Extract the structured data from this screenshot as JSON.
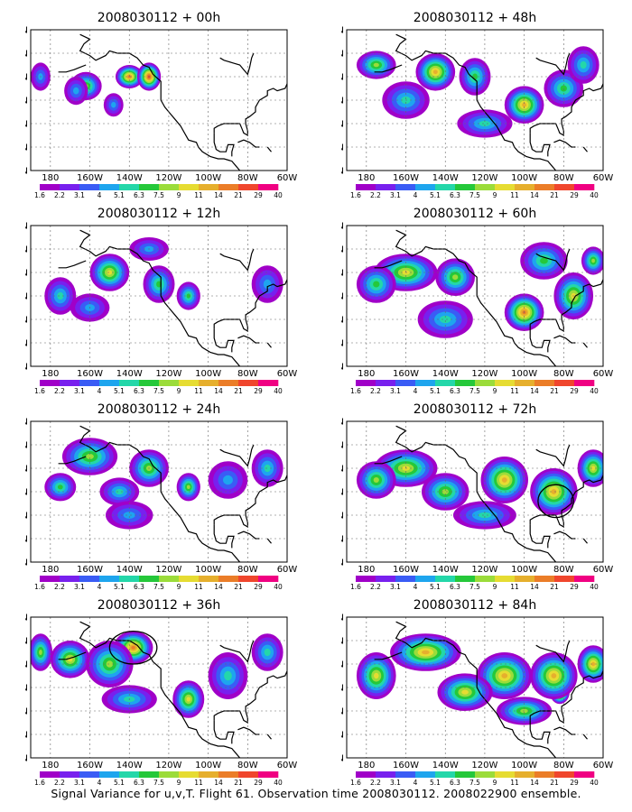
{
  "caption": "Signal Variance for u,v,T. Flight 61. Observation time 2008030112. 2008022900 ensemble.",
  "colors": {
    "background": "#ffffff",
    "coast": "#000000",
    "grid": "#666666",
    "palette": [
      "#a000c8",
      "#7820ee",
      "#3a5cf5",
      "#1ea5ee",
      "#24d7a9",
      "#25c83a",
      "#9bdc3a",
      "#e6dc32",
      "#e6af2d",
      "#eb7d28",
      "#f0462d",
      "#f00082"
    ]
  },
  "chart_data": [
    {
      "type": "heatmap",
      "title": "2008030112 + 00h",
      "x_ticks": [
        "180",
        "160W",
        "140W",
        "120W",
        "100W",
        "80W",
        "60W"
      ],
      "y_ticks": [
        "10N",
        "20N",
        "30N",
        "40N",
        "50N",
        "60N",
        "70N"
      ],
      "xlim": [
        -190,
        -60
      ],
      "ylim": [
        10,
        70
      ],
      "grid": true,
      "colorbar_levels": [
        "1.6",
        "2.2",
        "3.1",
        "4",
        "5.1",
        "6.3",
        "7.5",
        "9",
        "11",
        "14",
        "21",
        "29",
        "40"
      ],
      "field_blobs": [
        [
          -185,
          50,
          5,
          6,
          3
        ],
        [
          -162,
          46,
          8,
          6,
          6
        ],
        [
          -140,
          50,
          7,
          5,
          9
        ],
        [
          -130,
          50,
          6,
          6,
          10
        ],
        [
          -148,
          38,
          5,
          5,
          3
        ],
        [
          -167,
          44,
          6,
          6,
          3
        ]
      ],
      "highlights": []
    },
    {
      "type": "heatmap",
      "title": "2008030112 + 12h",
      "x_ticks": [
        "180",
        "160W",
        "140W",
        "120W",
        "100W",
        "80W",
        "60W"
      ],
      "y_ticks": [
        "10N",
        "20N",
        "30N",
        "40N",
        "50N",
        "60N",
        "70N"
      ],
      "xlim": [
        -190,
        -60
      ],
      "ylim": [
        10,
        70
      ],
      "grid": true,
      "colorbar_levels": [
        "1.6",
        "2.2",
        "3.1",
        "4",
        "5.1",
        "6.3",
        "7.5",
        "9",
        "11",
        "14",
        "21",
        "29",
        "40"
      ],
      "field_blobs": [
        [
          -150,
          50,
          10,
          8,
          7
        ],
        [
          -175,
          40,
          8,
          8,
          4
        ],
        [
          -125,
          45,
          8,
          8,
          5
        ],
        [
          -110,
          40,
          6,
          6,
          5
        ],
        [
          -70,
          45,
          8,
          8,
          3
        ],
        [
          -160,
          35,
          10,
          6,
          3
        ],
        [
          -130,
          60,
          10,
          5,
          3
        ]
      ],
      "highlights": []
    },
    {
      "type": "heatmap",
      "title": "2008030112 + 24h",
      "x_ticks": [
        "180",
        "160W",
        "140W",
        "120W",
        "100W",
        "80W",
        "60W"
      ],
      "y_ticks": [
        "10N",
        "20N",
        "30N",
        "40N",
        "50N",
        "60N",
        "70N"
      ],
      "xlim": [
        -190,
        -60
      ],
      "ylim": [
        10,
        70
      ],
      "grid": true,
      "colorbar_levels": [
        "1.6",
        "2.2",
        "3.1",
        "4",
        "5.1",
        "6.3",
        "7.5",
        "9",
        "11",
        "14",
        "21",
        "29",
        "40"
      ],
      "field_blobs": [
        [
          -160,
          55,
          14,
          8,
          6
        ],
        [
          -130,
          50,
          10,
          8,
          6
        ],
        [
          -110,
          42,
          6,
          6,
          6
        ],
        [
          -175,
          42,
          8,
          6,
          5
        ],
        [
          -145,
          40,
          10,
          6,
          4
        ],
        [
          -90,
          45,
          10,
          8,
          3
        ],
        [
          -70,
          50,
          8,
          8,
          4
        ],
        [
          -140,
          30,
          12,
          6,
          3
        ]
      ],
      "highlights": []
    },
    {
      "type": "heatmap",
      "title": "2008030112 + 36h",
      "x_ticks": [
        "180",
        "160W",
        "140W",
        "120W",
        "100W",
        "80W",
        "60W"
      ],
      "y_ticks": [
        "10N",
        "20N",
        "30N",
        "40N",
        "50N",
        "60N",
        "70N"
      ],
      "xlim": [
        -190,
        -60
      ],
      "ylim": [
        10,
        70
      ],
      "grid": true,
      "colorbar_levels": [
        "1.6",
        "2.2",
        "3.1",
        "4",
        "5.1",
        "6.3",
        "7.5",
        "9",
        "11",
        "14",
        "21",
        "29",
        "40"
      ],
      "field_blobs": [
        [
          -138,
          57,
          10,
          7,
          9
        ],
        [
          -170,
          52,
          10,
          8,
          7
        ],
        [
          -110,
          35,
          8,
          8,
          7
        ],
        [
          -185,
          55,
          6,
          8,
          6
        ],
        [
          -150,
          50,
          12,
          10,
          6
        ],
        [
          -90,
          45,
          10,
          10,
          4
        ],
        [
          -70,
          55,
          8,
          8,
          4
        ],
        [
          -140,
          35,
          14,
          6,
          4
        ]
      ],
      "highlights": [
        [
          -138,
          57,
          12,
          7
        ]
      ]
    },
    {
      "type": "heatmap",
      "title": "2008030112 + 48h",
      "x_ticks": [
        "180",
        "160W",
        "140W",
        "120W",
        "100W",
        "80W",
        "60W"
      ],
      "y_ticks": [
        "10N",
        "20N",
        "30N",
        "40N",
        "50N",
        "60N",
        "70N"
      ],
      "xlim": [
        -190,
        -60
      ],
      "ylim": [
        10,
        70
      ],
      "grid": true,
      "colorbar_levels": [
        "1.6",
        "2.2",
        "3.1",
        "4",
        "5.1",
        "6.3",
        "7.5",
        "9",
        "11",
        "14",
        "21",
        "29",
        "40"
      ],
      "field_blobs": [
        [
          -145,
          52,
          10,
          8,
          8
        ],
        [
          -100,
          38,
          10,
          8,
          8
        ],
        [
          -175,
          55,
          10,
          6,
          6
        ],
        [
          -125,
          50,
          8,
          8,
          5
        ],
        [
          -80,
          45,
          10,
          8,
          5
        ],
        [
          -160,
          40,
          12,
          8,
          4
        ],
        [
          -120,
          30,
          14,
          6,
          4
        ],
        [
          -70,
          55,
          8,
          8,
          4
        ]
      ],
      "highlights": []
    },
    {
      "type": "heatmap",
      "title": "2008030112 + 60h",
      "x_ticks": [
        "180",
        "160W",
        "140W",
        "120W",
        "100W",
        "80W",
        "60W"
      ],
      "y_ticks": [
        "10N",
        "20N",
        "30N",
        "40N",
        "50N",
        "60N",
        "70N"
      ],
      "xlim": [
        -190,
        -60
      ],
      "ylim": [
        10,
        70
      ],
      "grid": true,
      "colorbar_levels": [
        "1.6",
        "2.2",
        "3.1",
        "4",
        "5.1",
        "6.3",
        "7.5",
        "9",
        "11",
        "14",
        "21",
        "29",
        "40"
      ],
      "field_blobs": [
        [
          -100,
          33,
          10,
          8,
          9
        ],
        [
          -160,
          50,
          16,
          8,
          7
        ],
        [
          -135,
          48,
          10,
          8,
          6
        ],
        [
          -75,
          40,
          10,
          10,
          7
        ],
        [
          -175,
          45,
          10,
          8,
          5
        ],
        [
          -140,
          30,
          14,
          8,
          4
        ],
        [
          -90,
          55,
          12,
          8,
          5
        ],
        [
          -65,
          55,
          6,
          6,
          6
        ]
      ],
      "highlights": []
    },
    {
      "type": "heatmap",
      "title": "2008030112 + 72h",
      "x_ticks": [
        "180",
        "160W",
        "140W",
        "120W",
        "100W",
        "80W",
        "60W"
      ],
      "y_ticks": [
        "10N",
        "20N",
        "30N",
        "40N",
        "50N",
        "60N",
        "70N"
      ],
      "xlim": [
        -190,
        -60
      ],
      "ylim": [
        10,
        70
      ],
      "grid": true,
      "colorbar_levels": [
        "1.6",
        "2.2",
        "3.1",
        "4",
        "5.1",
        "6.3",
        "7.5",
        "9",
        "11",
        "14",
        "21",
        "29",
        "40"
      ],
      "field_blobs": [
        [
          -84,
          35,
          5,
          5,
          11
        ],
        [
          -160,
          50,
          16,
          8,
          7
        ],
        [
          -110,
          45,
          12,
          10,
          8
        ],
        [
          -85,
          40,
          12,
          10,
          8
        ],
        [
          -140,
          40,
          12,
          8,
          6
        ],
        [
          -175,
          45,
          10,
          8,
          6
        ],
        [
          -65,
          50,
          8,
          8,
          7
        ],
        [
          -120,
          30,
          16,
          6,
          4
        ]
      ],
      "highlights": [
        [
          -84,
          36,
          9,
          7
        ]
      ]
    },
    {
      "type": "heatmap",
      "title": "2008030112 + 84h",
      "x_ticks": [
        "180",
        "160W",
        "140W",
        "120W",
        "100W",
        "80W",
        "60W"
      ],
      "y_ticks": [
        "10N",
        "20N",
        "30N",
        "40N",
        "50N",
        "60N",
        "70N"
      ],
      "xlim": [
        -190,
        -60
      ],
      "ylim": [
        10,
        70
      ],
      "grid": true,
      "colorbar_levels": [
        "1.6",
        "2.2",
        "3.1",
        "4",
        "5.1",
        "6.3",
        "7.5",
        "9",
        "11",
        "14",
        "21",
        "29",
        "40"
      ],
      "field_blobs": [
        [
          -82,
          38,
          5,
          5,
          11
        ],
        [
          -150,
          55,
          18,
          8,
          8
        ],
        [
          -110,
          45,
          14,
          10,
          8
        ],
        [
          -85,
          45,
          12,
          10,
          8
        ],
        [
          -175,
          45,
          10,
          10,
          7
        ],
        [
          -130,
          38,
          14,
          8,
          7
        ],
        [
          -65,
          50,
          8,
          8,
          8
        ],
        [
          -100,
          30,
          14,
          6,
          6
        ]
      ],
      "highlights": []
    }
  ]
}
